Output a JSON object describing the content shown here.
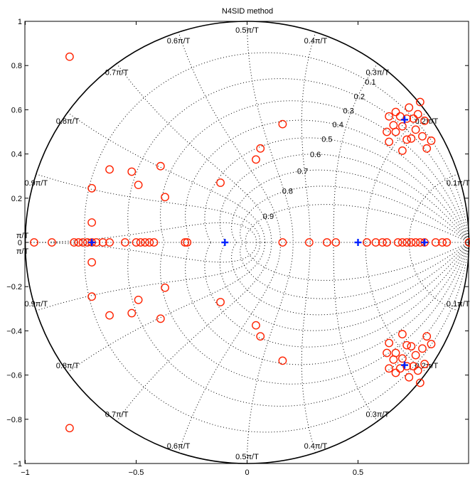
{
  "chart_data": {
    "type": "scatter",
    "title": "N4SID method",
    "xlim": [
      -1,
      1
    ],
    "ylim": [
      -1,
      1
    ],
    "x_ticks": [
      -1,
      -0.5,
      0,
      0.5
    ],
    "y_ticks": [
      1,
      0.8,
      0.6,
      0.4,
      0.2,
      0,
      -0.2,
      -0.4,
      -0.6,
      -0.8,
      -1
    ],
    "x_tick_labels": [
      "−1",
      "−0.5",
      "0",
      "0.5"
    ],
    "y_tick_labels": [
      "1",
      "0.8",
      "0.6",
      "0.4",
      "0.2",
      "0",
      "−0.2",
      "−0.4",
      "−0.6",
      "−0.8",
      "−1"
    ],
    "grid": true,
    "unit_circle": true,
    "colors": {
      "zeros": "#ff2200",
      "poles": "#0022ff",
      "grid": "#000000"
    },
    "damping_ratios": [
      0.1,
      0.2,
      0.3,
      0.4,
      0.5,
      0.6,
      0.7,
      0.8,
      0.9
    ],
    "damping_labels": [
      "0.1",
      "0.2",
      "0.3",
      "0.4",
      "0.5",
      "0.6",
      "0.7",
      "0.8",
      "0.9"
    ],
    "natural_freqs": [
      0.1,
      0.2,
      0.3,
      0.4,
      0.5,
      0.6,
      0.7,
      0.8,
      0.9,
      1.0
    ],
    "freq_labels_upper": [
      "0.1π/T",
      "0.2π/T",
      "0.3π/T",
      "0.4π/T",
      "0.5π/T",
      "0.6π/T",
      "0.7π/T",
      "0.8π/T",
      "0.9π/T",
      "π/T"
    ],
    "freq_labels_lower": [
      "0.1π/T",
      "0.2π/T",
      "0.3π/T",
      "0.4π/T",
      "0.5π/T",
      "0.6π/T",
      "0.7π/T",
      "0.8π/T",
      "0.9π/T",
      "π/T"
    ],
    "poles": [
      {
        "x": -0.1,
        "y": 0
      },
      {
        "x": 0.5,
        "y": 0
      },
      {
        "x": 0.8,
        "y": 0
      },
      {
        "x": -0.7,
        "y": 0
      },
      {
        "x": 0.71,
        "y": 0.555
      },
      {
        "x": 0.71,
        "y": -0.555
      }
    ],
    "zeros_upper": [
      {
        "x": -0.8,
        "y": 0.84
      },
      {
        "x": -0.62,
        "y": 0.33
      },
      {
        "x": -0.52,
        "y": 0.32
      },
      {
        "x": -0.49,
        "y": 0.26
      },
      {
        "x": -0.39,
        "y": 0.345
      },
      {
        "x": -0.37,
        "y": 0.205
      },
      {
        "x": -0.7,
        "y": 0.245
      },
      {
        "x": -0.7,
        "y": 0.09
      },
      {
        "x": -0.12,
        "y": 0.27
      },
      {
        "x": 0.04,
        "y": 0.375
      },
      {
        "x": 0.06,
        "y": 0.425
      },
      {
        "x": 0.16,
        "y": 0.535
      },
      {
        "x": 0.63,
        "y": 0.5
      },
      {
        "x": 0.64,
        "y": 0.57
      },
      {
        "x": 0.66,
        "y": 0.53
      },
      {
        "x": 0.67,
        "y": 0.59
      },
      {
        "x": 0.69,
        "y": 0.57
      },
      {
        "x": 0.7,
        "y": 0.525
      },
      {
        "x": 0.72,
        "y": 0.56
      },
      {
        "x": 0.73,
        "y": 0.61
      },
      {
        "x": 0.75,
        "y": 0.56
      },
      {
        "x": 0.76,
        "y": 0.51
      },
      {
        "x": 0.77,
        "y": 0.58
      },
      {
        "x": 0.78,
        "y": 0.635
      },
      {
        "x": 0.79,
        "y": 0.48
      },
      {
        "x": 0.81,
        "y": 0.425
      },
      {
        "x": 0.83,
        "y": 0.46
      },
      {
        "x": 0.7,
        "y": 0.415
      },
      {
        "x": 0.72,
        "y": 0.465
      },
      {
        "x": 0.64,
        "y": 0.455
      },
      {
        "x": 0.67,
        "y": 0.5
      },
      {
        "x": 0.74,
        "y": 0.47
      },
      {
        "x": 0.8,
        "y": 0.55
      }
    ],
    "zeros_real": [
      {
        "x": -0.96,
        "y": 0
      },
      {
        "x": -0.88,
        "y": 0
      },
      {
        "x": -0.78,
        "y": 0
      },
      {
        "x": -0.76,
        "y": 0
      },
      {
        "x": -0.74,
        "y": 0
      },
      {
        "x": -0.72,
        "y": 0
      },
      {
        "x": -0.7,
        "y": 0
      },
      {
        "x": -0.68,
        "y": 0
      },
      {
        "x": -0.65,
        "y": 0
      },
      {
        "x": -0.62,
        "y": 0
      },
      {
        "x": -0.55,
        "y": 0
      },
      {
        "x": -0.5,
        "y": 0
      },
      {
        "x": -0.48,
        "y": 0
      },
      {
        "x": -0.46,
        "y": 0
      },
      {
        "x": -0.44,
        "y": 0
      },
      {
        "x": -0.42,
        "y": 0
      },
      {
        "x": -0.28,
        "y": 0
      },
      {
        "x": -0.27,
        "y": 0
      },
      {
        "x": 0.16,
        "y": 0
      },
      {
        "x": 0.28,
        "y": 0
      },
      {
        "x": 0.36,
        "y": 0
      },
      {
        "x": 0.4,
        "y": 0
      },
      {
        "x": 0.54,
        "y": 0
      },
      {
        "x": 0.58,
        "y": 0
      },
      {
        "x": 0.61,
        "y": 0
      },
      {
        "x": 0.63,
        "y": 0
      },
      {
        "x": 0.68,
        "y": 0
      },
      {
        "x": 0.7,
        "y": 0
      },
      {
        "x": 0.72,
        "y": 0
      },
      {
        "x": 0.74,
        "y": 0
      },
      {
        "x": 0.76,
        "y": 0
      },
      {
        "x": 0.78,
        "y": 0
      },
      {
        "x": 0.8,
        "y": 0
      },
      {
        "x": 0.85,
        "y": 0
      },
      {
        "x": 0.88,
        "y": 0
      },
      {
        "x": 0.9,
        "y": 0
      },
      {
        "x": 1.0,
        "y": 0
      },
      {
        "x": 1.02,
        "y": 0
      }
    ]
  }
}
